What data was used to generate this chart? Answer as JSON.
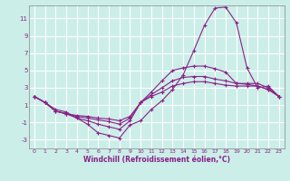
{
  "xlabel": "Windchill (Refroidissement éolien,°C)",
  "background_color": "#cceee8",
  "line_color": "#882288",
  "xlim": [
    -0.5,
    23.5
  ],
  "ylim": [
    -4,
    12.5
  ],
  "yticks": [
    -3,
    -1,
    1,
    3,
    5,
    7,
    9,
    11
  ],
  "xticks": [
    0,
    1,
    2,
    3,
    4,
    5,
    6,
    7,
    8,
    9,
    10,
    11,
    12,
    13,
    14,
    15,
    16,
    17,
    18,
    19,
    20,
    21,
    22,
    23
  ],
  "line1_x": [
    0,
    1,
    2,
    3,
    4,
    5,
    6,
    7,
    8,
    9,
    10,
    11,
    12,
    13,
    14,
    15,
    16,
    17,
    18,
    19,
    20,
    21,
    22,
    23
  ],
  "line1_y": [
    2.0,
    1.3,
    0.5,
    0.2,
    -0.5,
    -1.2,
    -2.2,
    -2.5,
    -2.8,
    -1.3,
    -0.8,
    0.5,
    1.5,
    2.8,
    4.5,
    7.3,
    10.2,
    12.2,
    12.3,
    10.5,
    5.3,
    3.0,
    3.2,
    2.0
  ],
  "line2_x": [
    0,
    1,
    2,
    3,
    4,
    5,
    6,
    7,
    8,
    9,
    10,
    11,
    12,
    13,
    14,
    15,
    16,
    17,
    18,
    19,
    20,
    21,
    22,
    23
  ],
  "line2_y": [
    2.0,
    1.3,
    0.3,
    0.0,
    -0.5,
    -0.8,
    -1.2,
    -1.5,
    -1.8,
    -0.8,
    1.3,
    2.5,
    3.8,
    5.0,
    5.3,
    5.5,
    5.5,
    5.2,
    4.8,
    3.5,
    3.4,
    3.2,
    2.8,
    2.0
  ],
  "line3_x": [
    0,
    1,
    2,
    3,
    4,
    5,
    6,
    7,
    8,
    9,
    10,
    11,
    12,
    13,
    14,
    15,
    16,
    17,
    18,
    19,
    20,
    21,
    22,
    23
  ],
  "line3_y": [
    2.0,
    1.3,
    0.3,
    0.0,
    -0.3,
    -0.5,
    -0.7,
    -0.9,
    -1.2,
    -0.5,
    1.3,
    2.2,
    3.0,
    3.8,
    4.2,
    4.3,
    4.3,
    4.0,
    3.8,
    3.5,
    3.5,
    3.5,
    3.0,
    2.0
  ],
  "line4_x": [
    0,
    1,
    2,
    3,
    4,
    5,
    6,
    7,
    8,
    9,
    10,
    11,
    12,
    13,
    14,
    15,
    16,
    17,
    18,
    19,
    20,
    21,
    22,
    23
  ],
  "line4_y": [
    2.0,
    1.3,
    0.3,
    0.0,
    -0.2,
    -0.3,
    -0.5,
    -0.6,
    -0.8,
    -0.3,
    1.3,
    2.0,
    2.5,
    3.2,
    3.5,
    3.7,
    3.7,
    3.5,
    3.3,
    3.2,
    3.2,
    3.2,
    2.8,
    2.0
  ]
}
